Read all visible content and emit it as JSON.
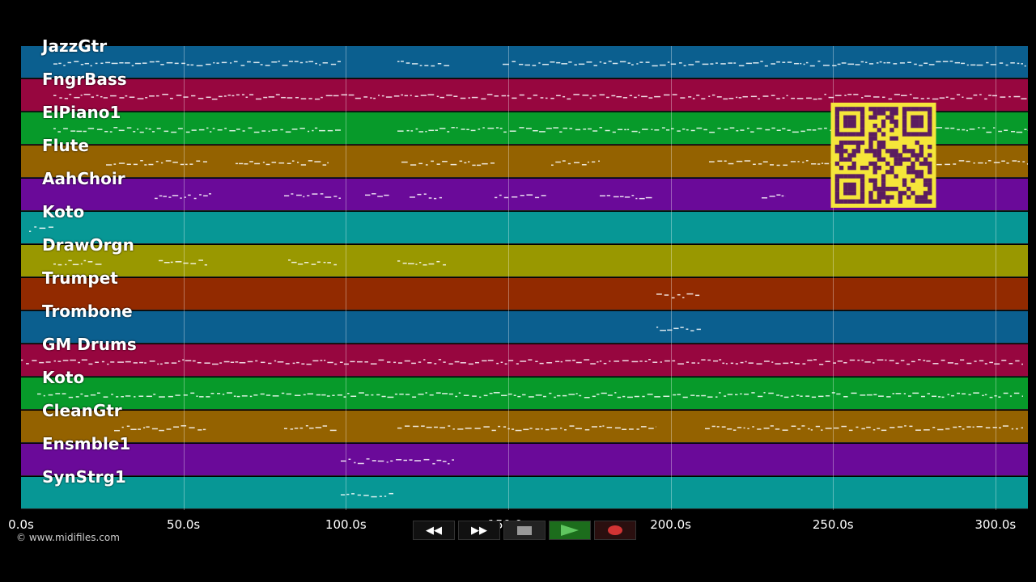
{
  "tracks": [
    {
      "name": "JazzGtr",
      "color": "#0b5f8f"
    },
    {
      "name": "FngrBass",
      "color": "#97063f"
    },
    {
      "name": "ElPiano1",
      "color": "#079a2a"
    },
    {
      "name": "Flute",
      "color": "#946200"
    },
    {
      "name": "AahChoir",
      "color": "#6a0a99"
    },
    {
      "name": "Koto",
      "color": "#079795"
    },
    {
      "name": "DrawOrgn",
      "color": "#999800"
    },
    {
      "name": "Trumpet",
      "color": "#922a00"
    },
    {
      "name": "Trombone",
      "color": "#0b5f8f"
    },
    {
      "name": "GM Drums",
      "color": "#97063f"
    },
    {
      "name": "Koto",
      "color": "#079a2a"
    },
    {
      "name": "CleanGtr",
      "color": "#946200"
    },
    {
      "name": "Ensmble1",
      "color": "#6a0a99"
    },
    {
      "name": "SynStrg1",
      "color": "#079795"
    }
  ],
  "timeline": {
    "ticks": [
      "0.0s",
      "50.0s",
      "100.0s",
      "150.0s",
      "200.0s",
      "250.0s",
      "300.0s"
    ],
    "max_seconds": 310
  },
  "footer": {
    "copyright": "© www.midifiles.com"
  },
  "transport": {
    "rewind_icon": "rewind-icon",
    "forward_icon": "fast-forward-icon",
    "stop_icon": "stop-icon",
    "play_icon": "play-icon",
    "record_icon": "record-icon"
  },
  "qr": {
    "fg": "#5b1c60",
    "bg": "#f5e63a"
  }
}
